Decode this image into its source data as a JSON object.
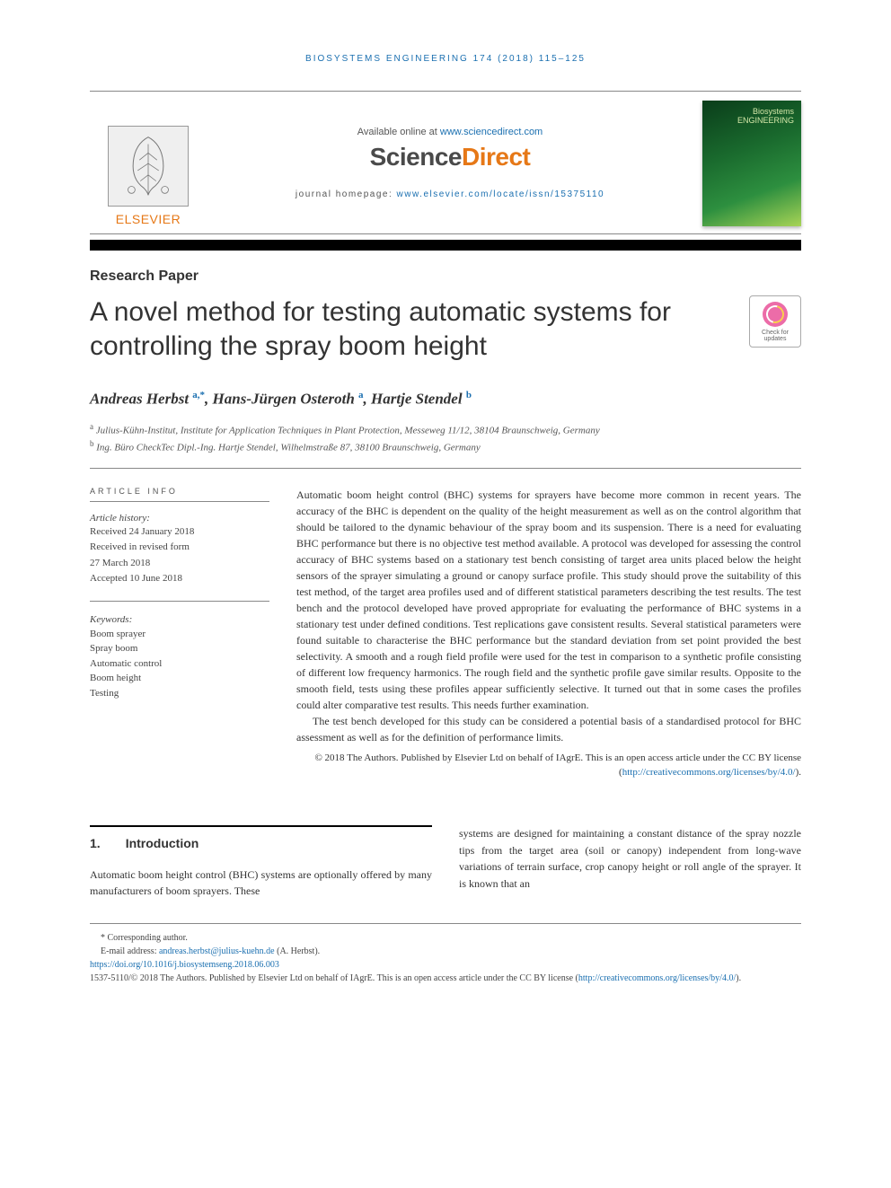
{
  "running_head": "BIOSYSTEMS ENGINEERING 174 (2018) 115–125",
  "header": {
    "publisher": "ELSEVIER",
    "available_prefix": "Available online at ",
    "available_link": "www.sciencedirect.com",
    "platform": "ScienceDirect",
    "homepage_prefix": "journal homepage: ",
    "homepage_link": "www.elsevier.com/locate/issn/15375110",
    "journal_cover_title": "Biosystems\nENGINEERING"
  },
  "article_type": "Research Paper",
  "title": "A novel method for testing automatic systems for controlling the spray boom height",
  "crossmark_label": "Check for updates",
  "authors_html": "Andreas Herbst <span class='sup'>a,*</span>, Hans-Jürgen Osteroth <span class='sup'>a</span>, Hartje Stendel <span class='sup'>b</span>",
  "affiliations": [
    {
      "sup": "a",
      "text": "Julius-Kühn-Institut, Institute for Application Techniques in Plant Protection, Messeweg 11/12, 38104 Braunschweig, Germany"
    },
    {
      "sup": "b",
      "text": "Ing. Büro CheckTec Dipl.-Ing. Hartje Stendel, Wilhelmstraße 87, 38100 Braunschweig, Germany"
    }
  ],
  "article_info": {
    "head": "ARTICLE INFO",
    "history_label": "Article history:",
    "history": [
      "Received 24 January 2018",
      "Received in revised form",
      "27 March 2018",
      "Accepted 10 June 2018"
    ],
    "keywords_label": "Keywords:",
    "keywords": [
      "Boom sprayer",
      "Spray boom",
      "Automatic control",
      "Boom height",
      "Testing"
    ]
  },
  "abstract": {
    "p1": "Automatic boom height control (BHC) systems for sprayers have become more common in recent years. The accuracy of the BHC is dependent on the quality of the height measurement as well as on the control algorithm that should be tailored to the dynamic behaviour of the spray boom and its suspension. There is a need for evaluating BHC performance but there is no objective test method available. A protocol was developed for assessing the control accuracy of BHC systems based on a stationary test bench consisting of target area units placed below the height sensors of the sprayer simulating a ground or canopy surface profile. This study should prove the suitability of this test method, of the target area profiles used and of different statistical parameters describing the test results. The test bench and the protocol developed have proved appropriate for evaluating the performance of BHC systems in a stationary test under defined conditions. Test replications gave consistent results. Several statistical parameters were found suitable to characterise the BHC performance but the standard deviation from set point provided the best selectivity. A smooth and a rough field profile were used for the test in comparison to a synthetic profile consisting of different low frequency harmonics. The rough field and the synthetic profile gave similar results. Opposite to the smooth field, tests using these profiles appear sufficiently selective. It turned out that in some cases the profiles could alter comparative test results. This needs further examination.",
    "p2": "The test bench developed for this study can be considered a potential basis of a standardised protocol for BHC assessment as well as for the definition of performance limits.",
    "copyright": "© 2018 The Authors. Published by Elsevier Ltd on behalf of IAgrE. This is an open access article under the CC BY license (",
    "cc_link": "http://creativecommons.org/licenses/by/4.0/",
    "cc_close": ")."
  },
  "section": {
    "num": "1.",
    "title": "Introduction",
    "col1": "Automatic boom height control (BHC) systems are optionally offered by many manufacturers of boom sprayers. These",
    "col2": "systems are designed for maintaining a constant distance of the spray nozzle tips from the target area (soil or canopy) independent from long-wave variations of terrain surface, crop canopy height or roll angle of the sprayer. It is known that an"
  },
  "footnotes": {
    "corresponding": "* Corresponding author.",
    "email_label": "E-mail address: ",
    "email": "andreas.herbst@julius-kuehn.de",
    "email_who": " (A. Herbst).",
    "doi": "https://doi.org/10.1016/j.biosystemseng.2018.06.003",
    "issn_line": "1537-5110/© 2018 The Authors. Published by Elsevier Ltd on behalf of IAgrE. This is an open access article under the CC BY license (",
    "cc_link": "http://creativecommons.org/licenses/by/4.0/",
    "cc_close": ")."
  },
  "colors": {
    "link": "#1a6fb0",
    "orange": "#e67817",
    "text": "#333333",
    "rule": "#888888"
  }
}
